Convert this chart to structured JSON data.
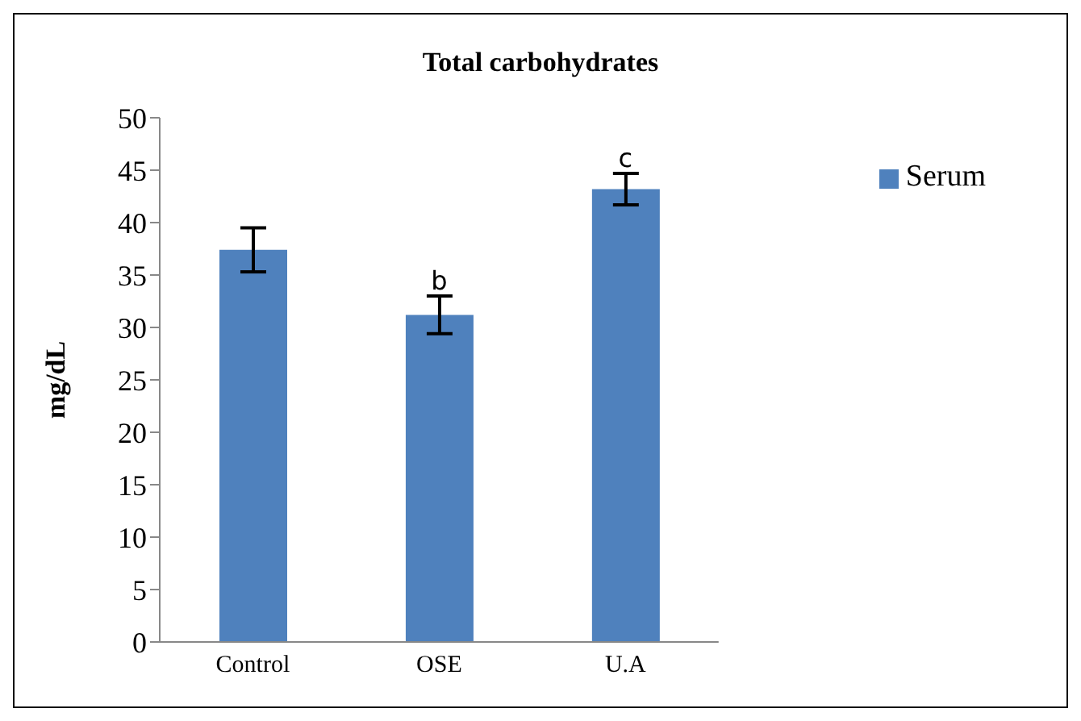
{
  "chart_data": {
    "type": "bar",
    "title": "Total carbohydrates",
    "ylabel": "mg/dL",
    "categories": [
      "Control",
      "OSE",
      "U.A"
    ],
    "series": [
      {
        "name": "Serum",
        "color": "#4f81bd",
        "values": [
          37.4,
          31.2,
          43.2
        ],
        "errors": [
          2.1,
          1.8,
          1.5
        ],
        "value_labels": [
          null,
          "b",
          "c"
        ]
      }
    ],
    "ylim": [
      0,
      50
    ],
    "yticks": [
      0,
      5,
      10,
      15,
      20,
      25,
      30,
      35,
      40,
      45,
      50
    ],
    "grid": false,
    "legend": "top right"
  }
}
